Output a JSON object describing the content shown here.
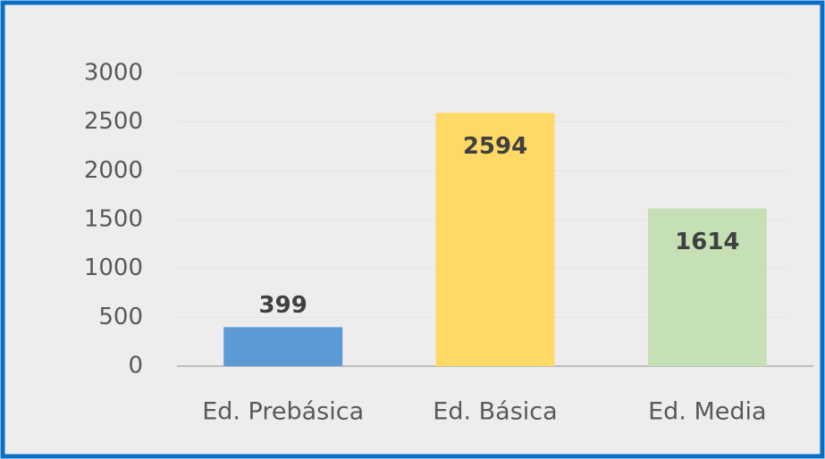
{
  "chart_data": {
    "type": "bar",
    "categories": [
      "Ed. Prebásica",
      "Ed. Básica",
      "Ed. Media"
    ],
    "values": [
      399,
      2594,
      1614
    ],
    "colors": [
      "#5b9bd5",
      "#ffd966",
      "#c5e0b4"
    ],
    "ylim": [
      0,
      3000
    ],
    "yticks": [
      0,
      500,
      1000,
      1500,
      2000,
      2500,
      3000
    ],
    "grid": true
  }
}
